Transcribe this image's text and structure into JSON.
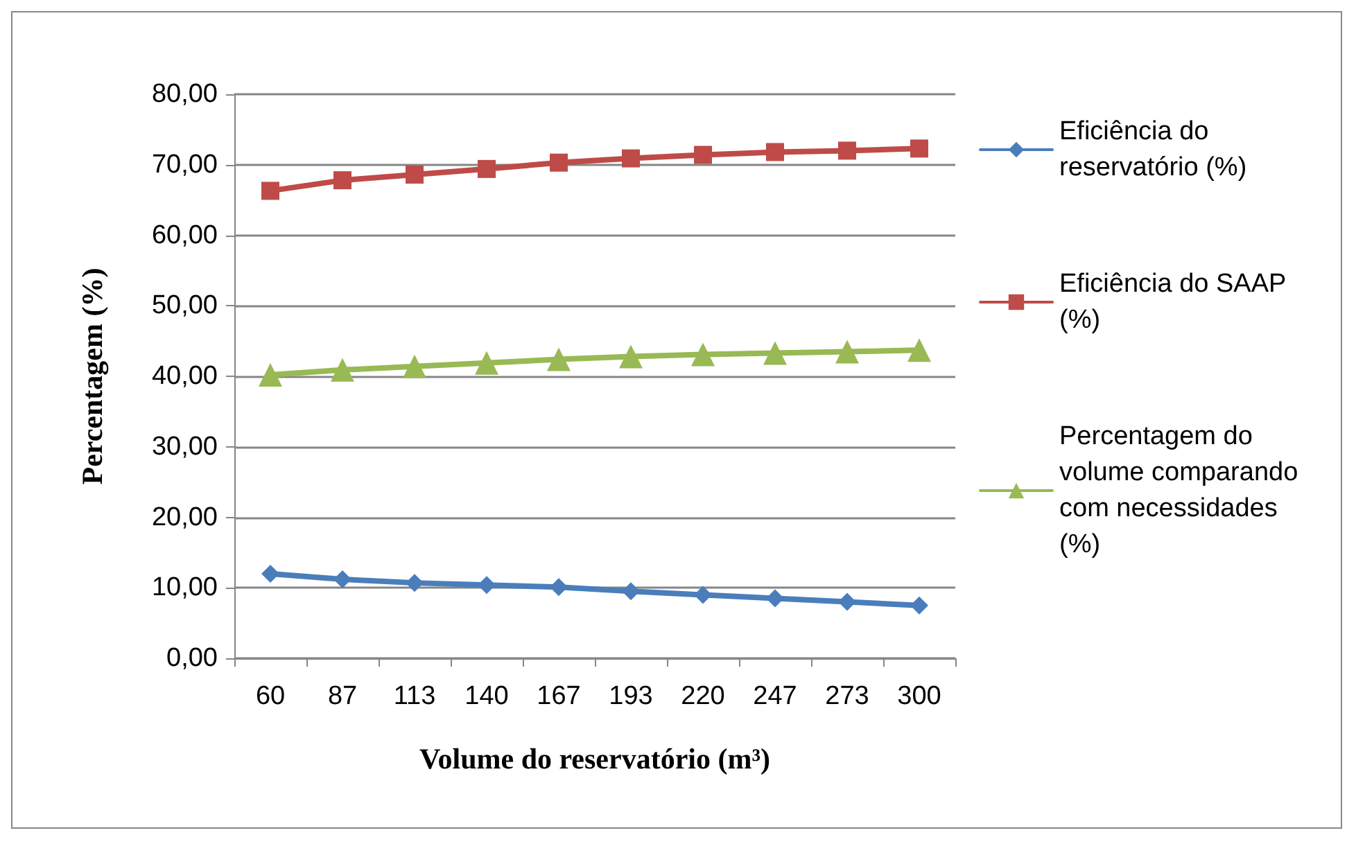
{
  "chart_data": {
    "type": "line",
    "xlabel": "Volume do reservatório (m³)",
    "ylabel": "Percentagem (%)",
    "categories": [
      "60",
      "87",
      "113",
      "140",
      "167",
      "193",
      "220",
      "247",
      "273",
      "300"
    ],
    "series": [
      {
        "name": "Eficiência do reservatório (%)",
        "color": "#4a7ebb",
        "marker": "diamond",
        "values": [
          12.0,
          11.2,
          10.7,
          10.4,
          10.1,
          9.5,
          9.0,
          8.5,
          8.0,
          7.5
        ]
      },
      {
        "name": "Eficiência do SAAP (%)",
        "color": "#be4b48",
        "marker": "square",
        "values": [
          66.3,
          67.8,
          68.6,
          69.4,
          70.3,
          70.9,
          71.4,
          71.8,
          72.0,
          72.3
        ]
      },
      {
        "name": "Percentagem do volume comparando com necessidades (%)",
        "color": "#98b954",
        "marker": "triangle",
        "values": [
          40.2,
          40.9,
          41.4,
          41.9,
          42.4,
          42.8,
          43.1,
          43.3,
          43.5,
          43.7
        ]
      }
    ],
    "ylim": [
      0,
      80
    ],
    "yticks": [
      {
        "value": 0,
        "label": "0,00"
      },
      {
        "value": 10,
        "label": "10,00"
      },
      {
        "value": 20,
        "label": "20,00"
      },
      {
        "value": 30,
        "label": "30,00"
      },
      {
        "value": 40,
        "label": "40,00"
      },
      {
        "value": 50,
        "label": "50,00"
      },
      {
        "value": 60,
        "label": "60,00"
      },
      {
        "value": 70,
        "label": "70,00"
      },
      {
        "value": 80,
        "label": "80,00"
      }
    ],
    "grid": "y",
    "legend": "right",
    "line_style": "solid"
  }
}
